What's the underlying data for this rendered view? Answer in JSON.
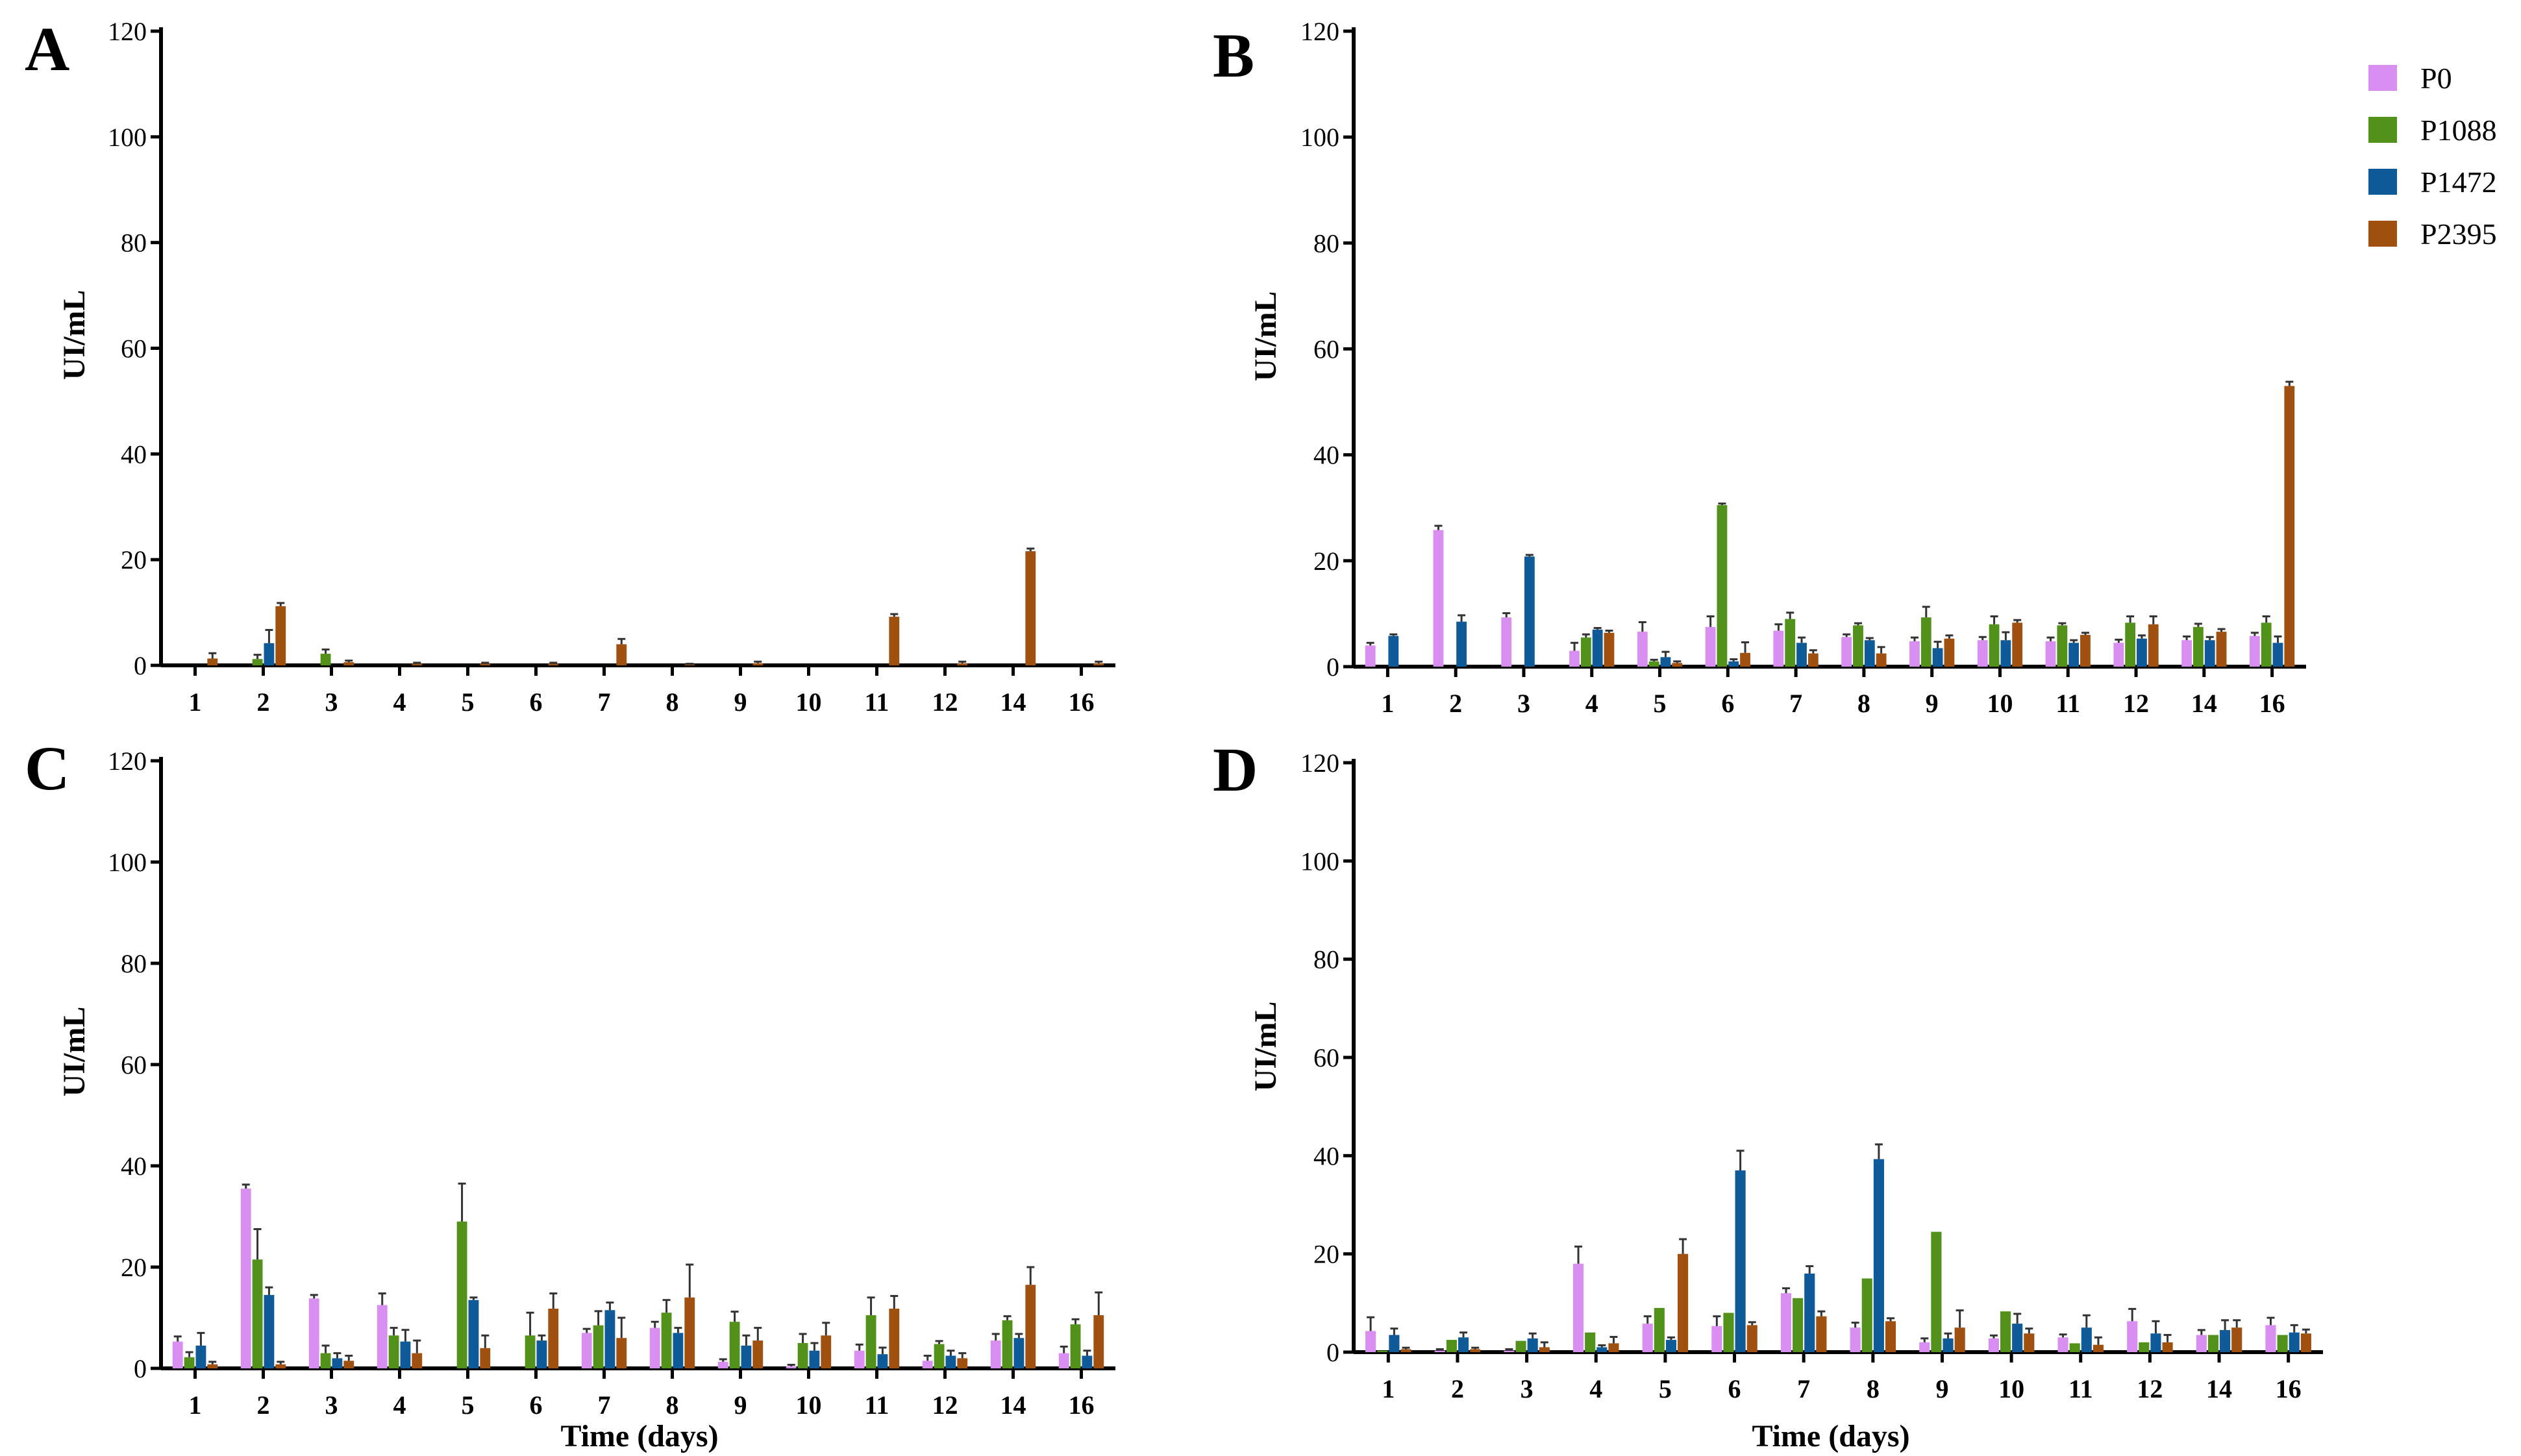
{
  "legend": {
    "entries": [
      {
        "name": "P0",
        "color": "#d98ef2"
      },
      {
        "name": "P1088",
        "color": "#53921a"
      },
      {
        "name": "P1472",
        "color": "#0f5b99"
      },
      {
        "name": "P2395",
        "color": "#a0500f"
      }
    ]
  },
  "chart_data": [
    {
      "panel": "A",
      "type": "bar",
      "title": "",
      "xlabel": "",
      "ylabel": "UI/mL",
      "ylim": [
        0,
        120
      ],
      "yticks": [
        0,
        20,
        40,
        60,
        80,
        100,
        120
      ],
      "categories": [
        "1",
        "2",
        "3",
        "4",
        "5",
        "6",
        "7",
        "8",
        "9",
        "10",
        "11",
        "12",
        "14",
        "16"
      ],
      "series": [
        {
          "name": "P0",
          "values": [
            0,
            0,
            0,
            0,
            0,
            0,
            0,
            0,
            0,
            0,
            0,
            0,
            0,
            0
          ],
          "errors": [
            0,
            0,
            0,
            0,
            0,
            0,
            0,
            0,
            0,
            0,
            0,
            0,
            0,
            0
          ]
        },
        {
          "name": "P1088",
          "values": [
            0,
            1.2,
            2.2,
            0,
            0,
            0,
            0,
            0,
            0,
            0,
            0,
            0,
            0,
            0
          ],
          "errors": [
            0,
            0.8,
            0.8,
            0,
            0,
            0,
            0,
            0,
            0,
            0,
            0,
            0,
            0,
            0
          ]
        },
        {
          "name": "P1472",
          "values": [
            0,
            4.2,
            0,
            0,
            0,
            0,
            0,
            0,
            0,
            0,
            0,
            0,
            0,
            0
          ],
          "errors": [
            0,
            2.5,
            0,
            0,
            0,
            0,
            0,
            0,
            0,
            0,
            0,
            0,
            0,
            0
          ]
        },
        {
          "name": "P2395",
          "values": [
            1.3,
            11.2,
            0.6,
            0.3,
            0.3,
            0.3,
            4.0,
            0.2,
            0.4,
            0,
            9.2,
            0.4,
            21.6,
            0.4
          ],
          "errors": [
            1.0,
            0.6,
            0.3,
            0.2,
            0.2,
            0.2,
            1.0,
            0.1,
            0.3,
            0,
            0.5,
            0.3,
            0.5,
            0.3
          ]
        }
      ]
    },
    {
      "panel": "B",
      "type": "bar",
      "title": "",
      "xlabel": "",
      "ylabel": "UI/mL",
      "ylim": [
        0,
        120
      ],
      "yticks": [
        0,
        20,
        40,
        60,
        80,
        100,
        120
      ],
      "categories": [
        "1",
        "2",
        "3",
        "4",
        "5",
        "6",
        "7",
        "8",
        "9",
        "10",
        "11",
        "12",
        "14",
        "16"
      ],
      "series": [
        {
          "name": "P0",
          "values": [
            4.0,
            25.8,
            9.3,
            3.0,
            6.6,
            7.5,
            6.8,
            5.6,
            4.8,
            5.0,
            4.8,
            4.5,
            5.0,
            5.8
          ],
          "errors": [
            0.5,
            0.8,
            0.8,
            1.5,
            1.8,
            2.0,
            1.2,
            0.5,
            0.7,
            0.6,
            0.7,
            0.6,
            0.7,
            0.6
          ]
        },
        {
          "name": "P1088",
          "values": [
            0,
            0,
            0,
            5.5,
            1.0,
            30.5,
            9.0,
            7.8,
            9.3,
            8.0,
            7.8,
            8.3,
            7.5,
            8.3
          ],
          "errors": [
            0,
            0,
            0,
            0.6,
            0.3,
            0.3,
            1.2,
            0.4,
            2.0,
            1.5,
            0.4,
            1.2,
            0.6,
            1.2
          ]
        },
        {
          "name": "P1472",
          "values": [
            5.8,
            8.5,
            20.8,
            7.0,
            1.8,
            1.0,
            4.5,
            5.0,
            3.5,
            5.0,
            4.5,
            5.3,
            5.0,
            4.5
          ],
          "errors": [
            0.3,
            1.2,
            0.3,
            0.3,
            1.0,
            0.4,
            1.0,
            0.4,
            1.2,
            1.5,
            0.5,
            0.6,
            0.6,
            1.2
          ]
        },
        {
          "name": "P2395",
          "values": [
            0,
            0,
            0,
            6.4,
            0.7,
            2.6,
            2.5,
            2.5,
            5.3,
            8.3,
            6.0,
            8.0,
            6.6,
            53.0
          ],
          "errors": [
            0,
            0,
            0,
            0.4,
            0.3,
            2.0,
            0.6,
            1.2,
            0.6,
            0.5,
            0.4,
            1.5,
            0.5,
            0.8
          ]
        }
      ]
    },
    {
      "panel": "C",
      "type": "bar",
      "title": "",
      "xlabel": "Time (days)",
      "ylabel": "UI/mL",
      "ylim": [
        0,
        120
      ],
      "yticks": [
        0,
        20,
        40,
        60,
        80,
        100,
        120
      ],
      "categories": [
        "1",
        "2",
        "3",
        "4",
        "5",
        "6",
        "7",
        "8",
        "9",
        "10",
        "11",
        "12",
        "14",
        "16"
      ],
      "series": [
        {
          "name": "P0",
          "values": [
            5.3,
            35.5,
            13.8,
            12.5,
            0,
            0,
            7.0,
            8.0,
            1.3,
            0.4,
            3.5,
            1.5,
            5.5,
            3.0
          ],
          "errors": [
            1.0,
            0.8,
            0.7,
            2.3,
            0,
            0,
            0.8,
            1.2,
            0.5,
            0.3,
            1.2,
            1.0,
            1.3,
            1.3
          ]
        },
        {
          "name": "P1088",
          "values": [
            2.2,
            21.5,
            3.0,
            6.5,
            29.0,
            6.5,
            8.5,
            11.0,
            9.2,
            5.0,
            10.5,
            4.8,
            9.5,
            8.7
          ],
          "errors": [
            1.0,
            6.0,
            1.5,
            1.5,
            7.5,
            4.5,
            2.8,
            2.5,
            2.0,
            1.8,
            3.5,
            0.6,
            0.8,
            1.0
          ]
        },
        {
          "name": "P1472",
          "values": [
            4.5,
            14.5,
            2.0,
            5.3,
            13.5,
            5.5,
            11.5,
            7.0,
            4.5,
            3.5,
            2.8,
            2.5,
            6.0,
            2.5
          ],
          "errors": [
            2.5,
            1.5,
            1.0,
            2.3,
            0.5,
            1.0,
            1.5,
            1.0,
            2.0,
            1.5,
            1.3,
            1.0,
            0.8,
            1.0
          ]
        },
        {
          "name": "P2395",
          "values": [
            0.8,
            0.8,
            1.5,
            3.0,
            4.0,
            11.8,
            6.0,
            14.0,
            5.5,
            6.5,
            11.8,
            2.0,
            16.5,
            10.5
          ],
          "errors": [
            0.5,
            0.5,
            1.0,
            2.5,
            2.5,
            3.0,
            4.0,
            6.5,
            2.5,
            2.5,
            2.5,
            1.0,
            3.5,
            4.5
          ]
        }
      ]
    },
    {
      "panel": "D",
      "type": "bar",
      "title": "",
      "xlabel": "Time (days)",
      "ylabel": "UI/mL",
      "ylim": [
        0,
        120
      ],
      "yticks": [
        0,
        20,
        40,
        60,
        80,
        100,
        120
      ],
      "categories": [
        "1",
        "2",
        "3",
        "4",
        "5",
        "6",
        "7",
        "8",
        "9",
        "10",
        "11",
        "12",
        "14",
        "16"
      ],
      "series": [
        {
          "name": "P0",
          "values": [
            4.3,
            0.3,
            0.3,
            18.0,
            5.8,
            5.3,
            12.0,
            5.0,
            2.0,
            2.8,
            3.0,
            6.3,
            3.5,
            5.5
          ],
          "errors": [
            2.8,
            0.3,
            0.3,
            3.5,
            1.5,
            2.0,
            1.0,
            1.0,
            0.8,
            0.6,
            0.6,
            2.5,
            1.0,
            1.5
          ]
        },
        {
          "name": "P1088",
          "values": [
            0.3,
            2.5,
            2.3,
            4.0,
            9.0,
            8.0,
            11.0,
            15.0,
            24.5,
            8.3,
            1.8,
            2.0,
            3.5,
            3.5
          ]
        },
        {
          "name": "P1472",
          "values": [
            3.5,
            3.0,
            2.8,
            1.0,
            2.5,
            37.0,
            16.0,
            39.3,
            2.8,
            5.8,
            5.0,
            3.8,
            4.5,
            4.0
          ],
          "errors": [
            1.3,
            1.0,
            1.0,
            0.4,
            0.5,
            4.0,
            1.5,
            3.0,
            1.0,
            2.0,
            2.5,
            2.5,
            2.0,
            1.5
          ]
        },
        {
          "name": "P2395",
          "values": [
            0.6,
            0.6,
            1.0,
            1.8,
            20.0,
            5.5,
            7.3,
            6.3,
            5.0,
            3.8,
            1.5,
            2.0,
            5.0,
            3.8
          ],
          "errors": [
            0.3,
            0.3,
            1.0,
            1.3,
            3.0,
            0.6,
            1.0,
            0.6,
            3.5,
            1.0,
            1.5,
            1.5,
            1.5,
            0.8
          ]
        }
      ]
    }
  ]
}
